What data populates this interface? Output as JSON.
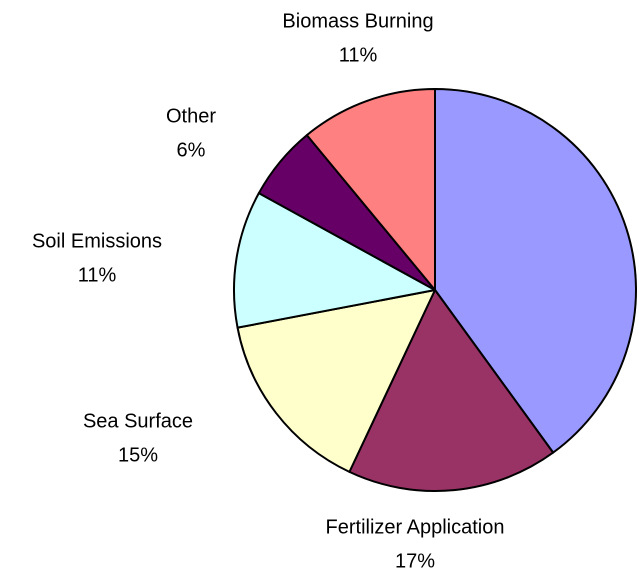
{
  "chart_data": {
    "type": "pie",
    "categories": [
      null,
      "Fertilizer Application",
      "Sea Surface",
      "Soil Emissions",
      "Other",
      "Biomass Burning"
    ],
    "values": [
      40,
      17,
      15,
      11,
      6,
      11
    ],
    "value_labels": [
      null,
      "17%",
      "15%",
      "11%",
      "6%",
      "11%"
    ],
    "colors": [
      "#9999ff",
      "#993366",
      "#ffffcc",
      "#ccffff",
      "#660066",
      "#ff8080"
    ]
  }
}
